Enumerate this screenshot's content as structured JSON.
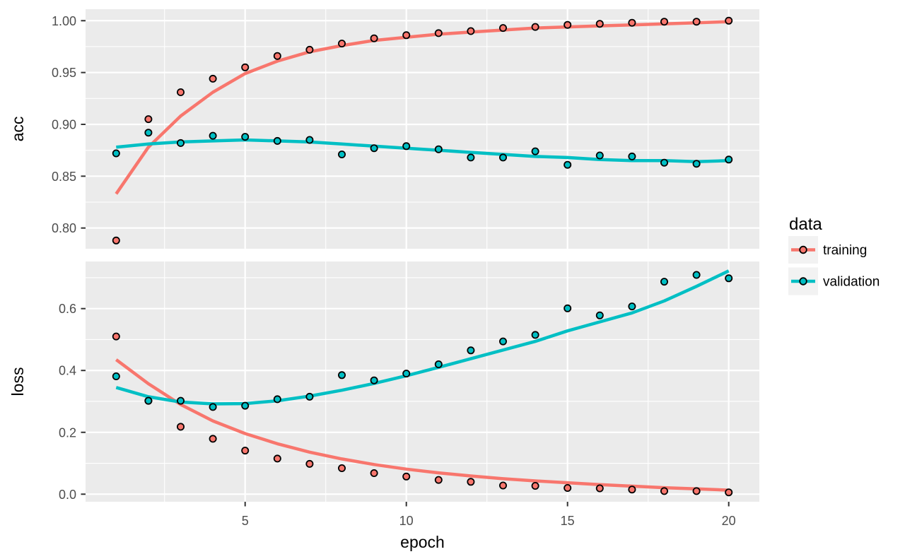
{
  "figure": {
    "kind": "ggplot-training-history",
    "background": "#FFFFFF"
  },
  "colors": {
    "training": "#F8766D",
    "validation": "#00BFC4",
    "panel_bg": "#EBEBEB",
    "grid": "#FFFFFF",
    "legend_key_bg": "#F2F2F2",
    "tick_mark": "#333333",
    "tick_label": "#4D4D4D",
    "point_stroke": "#000000",
    "text": "#000000"
  },
  "legend": {
    "title": "data",
    "entries": [
      {
        "id": "training",
        "label": "training"
      },
      {
        "id": "validation",
        "label": "validation"
      }
    ]
  },
  "x_axis": {
    "title": "epoch",
    "ticks": [
      5,
      10,
      15,
      20
    ],
    "tick_labels": [
      "5",
      "10",
      "15",
      "20"
    ],
    "minor_ticks": [
      2.5,
      7.5,
      12.5,
      17.5
    ],
    "range": [
      0.05,
      20.95
    ]
  },
  "epochs": [
    1,
    2,
    3,
    4,
    5,
    6,
    7,
    8,
    9,
    10,
    11,
    12,
    13,
    14,
    15,
    16,
    17,
    18,
    19,
    20
  ],
  "chart_data": [
    {
      "type": "scatter",
      "facet": "acc",
      "ylabel": "acc",
      "title": "",
      "grid": true,
      "legend_position": "right",
      "ylim": [
        0.78,
        1.0111
      ],
      "y_ticks": {
        "labels": [
          "1.00",
          "0.95",
          "0.90",
          "0.85",
          "0.80"
        ],
        "values": [
          1.0,
          0.95,
          0.9,
          0.85,
          0.8
        ]
      },
      "y_minor": [
        0.975,
        0.925,
        0.875,
        0.825
      ],
      "series": [
        {
          "name": "training",
          "points": [
            0.788,
            0.905,
            0.931,
            0.944,
            0.955,
            0.966,
            0.972,
            0.978,
            0.983,
            0.986,
            0.988,
            0.99,
            0.993,
            0.994,
            0.996,
            0.997,
            0.998,
            0.999,
            0.999,
            1.0
          ],
          "smooth": [
            0.833,
            0.878,
            0.908,
            0.931,
            0.949,
            0.961,
            0.97,
            0.976,
            0.981,
            0.984,
            0.987,
            0.989,
            0.991,
            0.993,
            0.994,
            0.995,
            0.996,
            0.997,
            0.998,
            0.999
          ]
        },
        {
          "name": "validation",
          "points": [
            0.872,
            0.892,
            0.882,
            0.889,
            0.888,
            0.884,
            0.885,
            0.871,
            0.877,
            0.879,
            0.876,
            0.868,
            0.868,
            0.874,
            0.861,
            0.87,
            0.869,
            0.863,
            0.862,
            0.866
          ],
          "smooth": [
            0.878,
            0.881,
            0.883,
            0.884,
            0.885,
            0.884,
            0.883,
            0.881,
            0.879,
            0.877,
            0.875,
            0.873,
            0.871,
            0.869,
            0.868,
            0.866,
            0.865,
            0.865,
            0.864,
            0.865
          ]
        }
      ]
    },
    {
      "type": "scatter",
      "facet": "loss",
      "ylabel": "loss",
      "title": "",
      "grid": true,
      "legend_position": "right",
      "ylim": [
        -0.0245,
        0.7524
      ],
      "y_ticks": {
        "labels": [
          "0.6",
          "0.4",
          "0.2",
          "0.0"
        ],
        "values": [
          0.6,
          0.4,
          0.2,
          0.0
        ]
      },
      "y_minor": [
        0.7,
        0.5,
        0.3,
        0.1
      ],
      "series": [
        {
          "name": "training",
          "points": [
            0.51,
            0.302,
            0.218,
            0.179,
            0.141,
            0.115,
            0.098,
            0.084,
            0.068,
            0.057,
            0.046,
            0.04,
            0.028,
            0.027,
            0.02,
            0.019,
            0.015,
            0.01,
            0.01,
            0.006
          ],
          "smooth": [
            0.435,
            0.357,
            0.29,
            0.237,
            0.196,
            0.163,
            0.136,
            0.114,
            0.096,
            0.081,
            0.069,
            0.059,
            0.05,
            0.043,
            0.037,
            0.031,
            0.026,
            0.021,
            0.017,
            0.013
          ]
        },
        {
          "name": "validation",
          "points": [
            0.381,
            0.302,
            0.302,
            0.282,
            0.286,
            0.307,
            0.315,
            0.385,
            0.368,
            0.39,
            0.42,
            0.465,
            0.494,
            0.515,
            0.601,
            0.578,
            0.607,
            0.687,
            0.709,
            0.698
          ],
          "smooth": [
            0.345,
            0.315,
            0.298,
            0.292,
            0.293,
            0.302,
            0.317,
            0.336,
            0.358,
            0.383,
            0.41,
            0.438,
            0.466,
            0.494,
            0.528,
            0.557,
            0.586,
            0.625,
            0.672,
            0.722
          ]
        }
      ]
    }
  ]
}
